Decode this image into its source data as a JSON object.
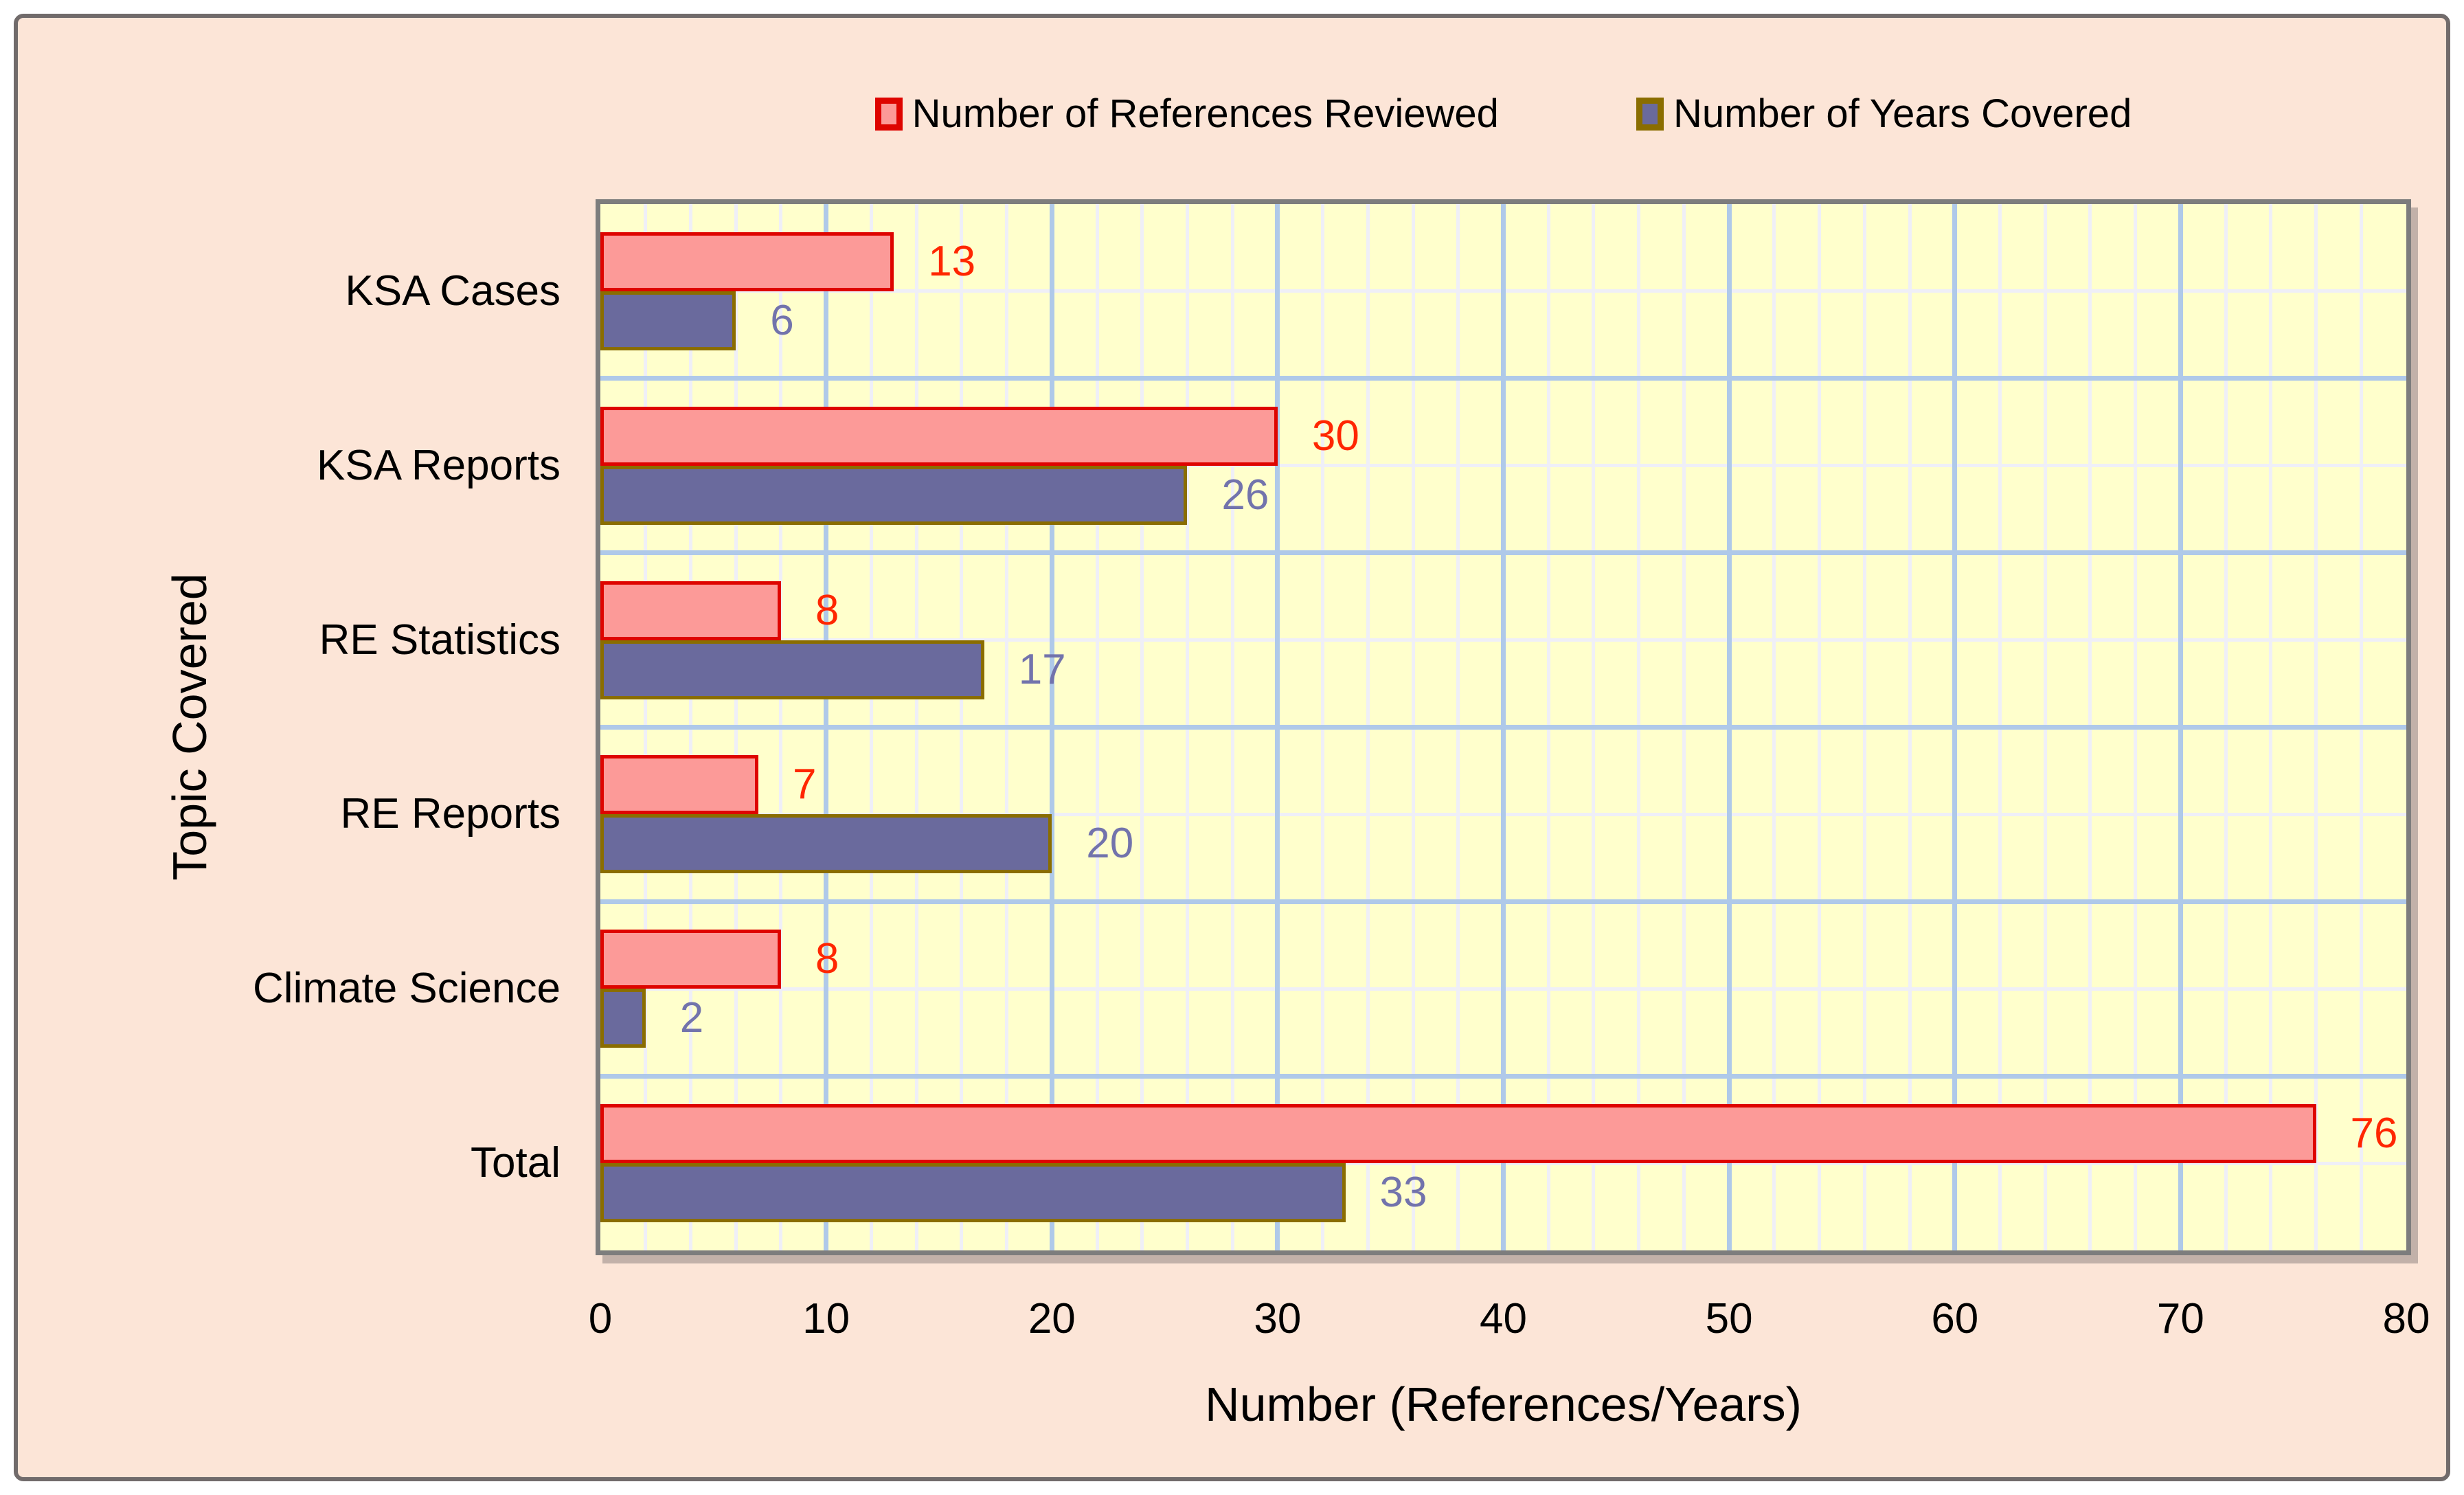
{
  "chart_data": {
    "type": "bar",
    "orientation": "horizontal",
    "categories": [
      "KSA Cases",
      "KSA Reports",
      "RE Statistics",
      "RE Reports",
      "Climate Science",
      "Total"
    ],
    "series": [
      {
        "name": "Number of References Reviewed",
        "values": [
          13,
          30,
          8,
          7,
          8,
          76
        ],
        "fill": "#FC9A98",
        "border": "#DE0400",
        "label_color": "#FF2600"
      },
      {
        "name": "Number of Years Covered",
        "values": [
          6,
          26,
          17,
          20,
          2,
          33
        ],
        "fill": "#6A6A9D",
        "border": "#8A6D00",
        "label_color": "#7273AC"
      }
    ],
    "xlabel": "Number (References/Years)",
    "ylabel": "Topic Covered",
    "xlim": [
      0,
      80
    ],
    "xticks": [
      0,
      10,
      20,
      30,
      40,
      50,
      60,
      70,
      80
    ],
    "grid": {
      "major_every": 10,
      "minor_every": 2,
      "major_color": "#AFC9E9",
      "minor_color": "#EFEFF7"
    },
    "legend_position": "top-center"
  },
  "colors": {
    "page_bg": "#FFFFFF",
    "frame_bg": "#FCE5D7",
    "frame_border": "#716B6B",
    "plot_bg": "#FFFFCC",
    "plot_border": "#7D7D7D",
    "text": "#000000"
  }
}
